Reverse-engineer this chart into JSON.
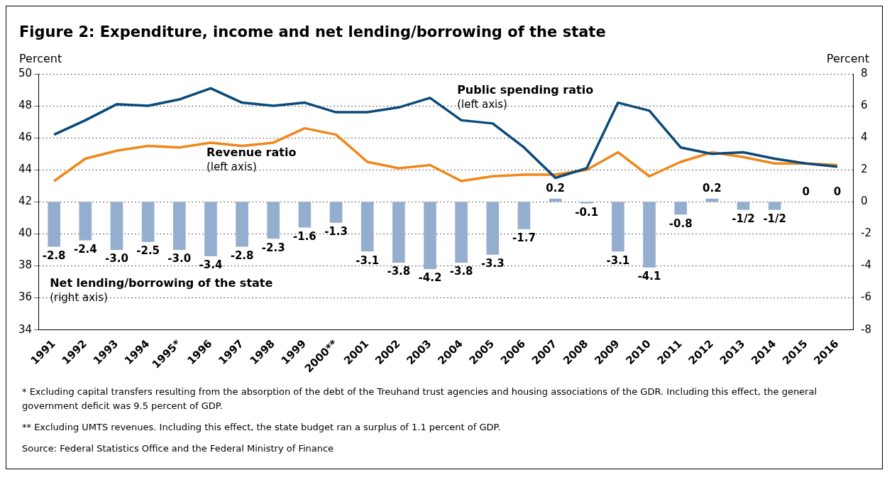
{
  "chart_data": {
    "type": "line",
    "title": "Figure 2: Expenditure, income and net lending/borrowing of the state",
    "ylabel": "Percent",
    "y2label": "Percent",
    "categories": [
      "1991",
      "1992",
      "1993",
      "1994",
      "1995*",
      "1996",
      "1997",
      "1998",
      "1999",
      "2000**",
      "2001",
      "2002",
      "2003",
      "2004",
      "2005",
      "2006",
      "2007",
      "2008",
      "2009",
      "2010",
      "2011",
      "2012",
      "2013",
      "2014",
      "2015",
      "2016"
    ],
    "series": [
      {
        "name": "Public spending ratio",
        "color": "#0b4a7a",
        "values": [
          46.2,
          47.1,
          48.1,
          48.0,
          48.4,
          49.1,
          48.2,
          48.0,
          48.2,
          47.6,
          47.6,
          47.9,
          48.5,
          47.1,
          46.9,
          45.4,
          43.5,
          44.1,
          48.2,
          47.7,
          45.4,
          45.0,
          45.1,
          44.7,
          44.4,
          44.2
        ]
      },
      {
        "name": "Revenue ratio",
        "color": "#f0871a",
        "values": [
          43.3,
          44.7,
          45.2,
          45.5,
          45.4,
          45.7,
          45.5,
          45.7,
          46.6,
          46.2,
          44.5,
          44.1,
          44.3,
          43.3,
          43.6,
          43.7,
          43.7,
          44.0,
          45.1,
          43.6,
          44.5,
          45.1,
          44.8,
          44.4,
          44.4,
          44.3
        ]
      },
      {
        "name": "Net lending/borrowing of the state",
        "type": "bar",
        "axis": "y2",
        "color": "#95aed0",
        "values": [
          -2.8,
          -2.4,
          -3.0,
          -2.5,
          -3.0,
          -3.4,
          -2.8,
          -2.3,
          -1.6,
          -1.3,
          -3.1,
          -3.8,
          -4.2,
          -3.8,
          -3.3,
          -1.7,
          0.2,
          -0.1,
          -3.1,
          -4.1,
          -0.8,
          0.2,
          -0.5,
          -0.5,
          0,
          0
        ],
        "value_labels": [
          "-2.8",
          "-2.4",
          "-3.0",
          "-2.5",
          "-3.0",
          "-3.4",
          "-2.8",
          "-2.3",
          "-1.6",
          "-1.3",
          "-3.1",
          "-3.8",
          "-4.2",
          "-3.8",
          "-3.3",
          "-1.7",
          "0.2",
          "-0.1",
          "-3.1",
          "-4.1",
          "-0.8",
          "0.2",
          "-1/2",
          "-1/2",
          "0",
          "0"
        ]
      }
    ],
    "ylim": [
      34,
      50
    ],
    "yticks": [
      34,
      36,
      38,
      40,
      42,
      44,
      46,
      48,
      50
    ],
    "y2lim": [
      -8,
      8
    ],
    "y2ticks": [
      -8,
      -6,
      -4,
      -2,
      0,
      2,
      4,
      6,
      8
    ],
    "grid": "y",
    "legend": false,
    "marker": "none",
    "line_style": "solid",
    "annotations": [
      "(left axis)",
      "(left axis)",
      "(right axis)",
      "*  Excluding capital transfers resulting from the absorption of the debt of the Treuhand trust agencies and housing associations of the GDR. Including this effect, the general government deficit was 9.5 percent of GDP.",
      "**  Excluding UMTS revenues. Including this effect, the state budget ran a surplus of 1.1 percent of GDP.",
      "Source: Federal Statistics Office and the Federal Ministry of Finance"
    ]
  }
}
